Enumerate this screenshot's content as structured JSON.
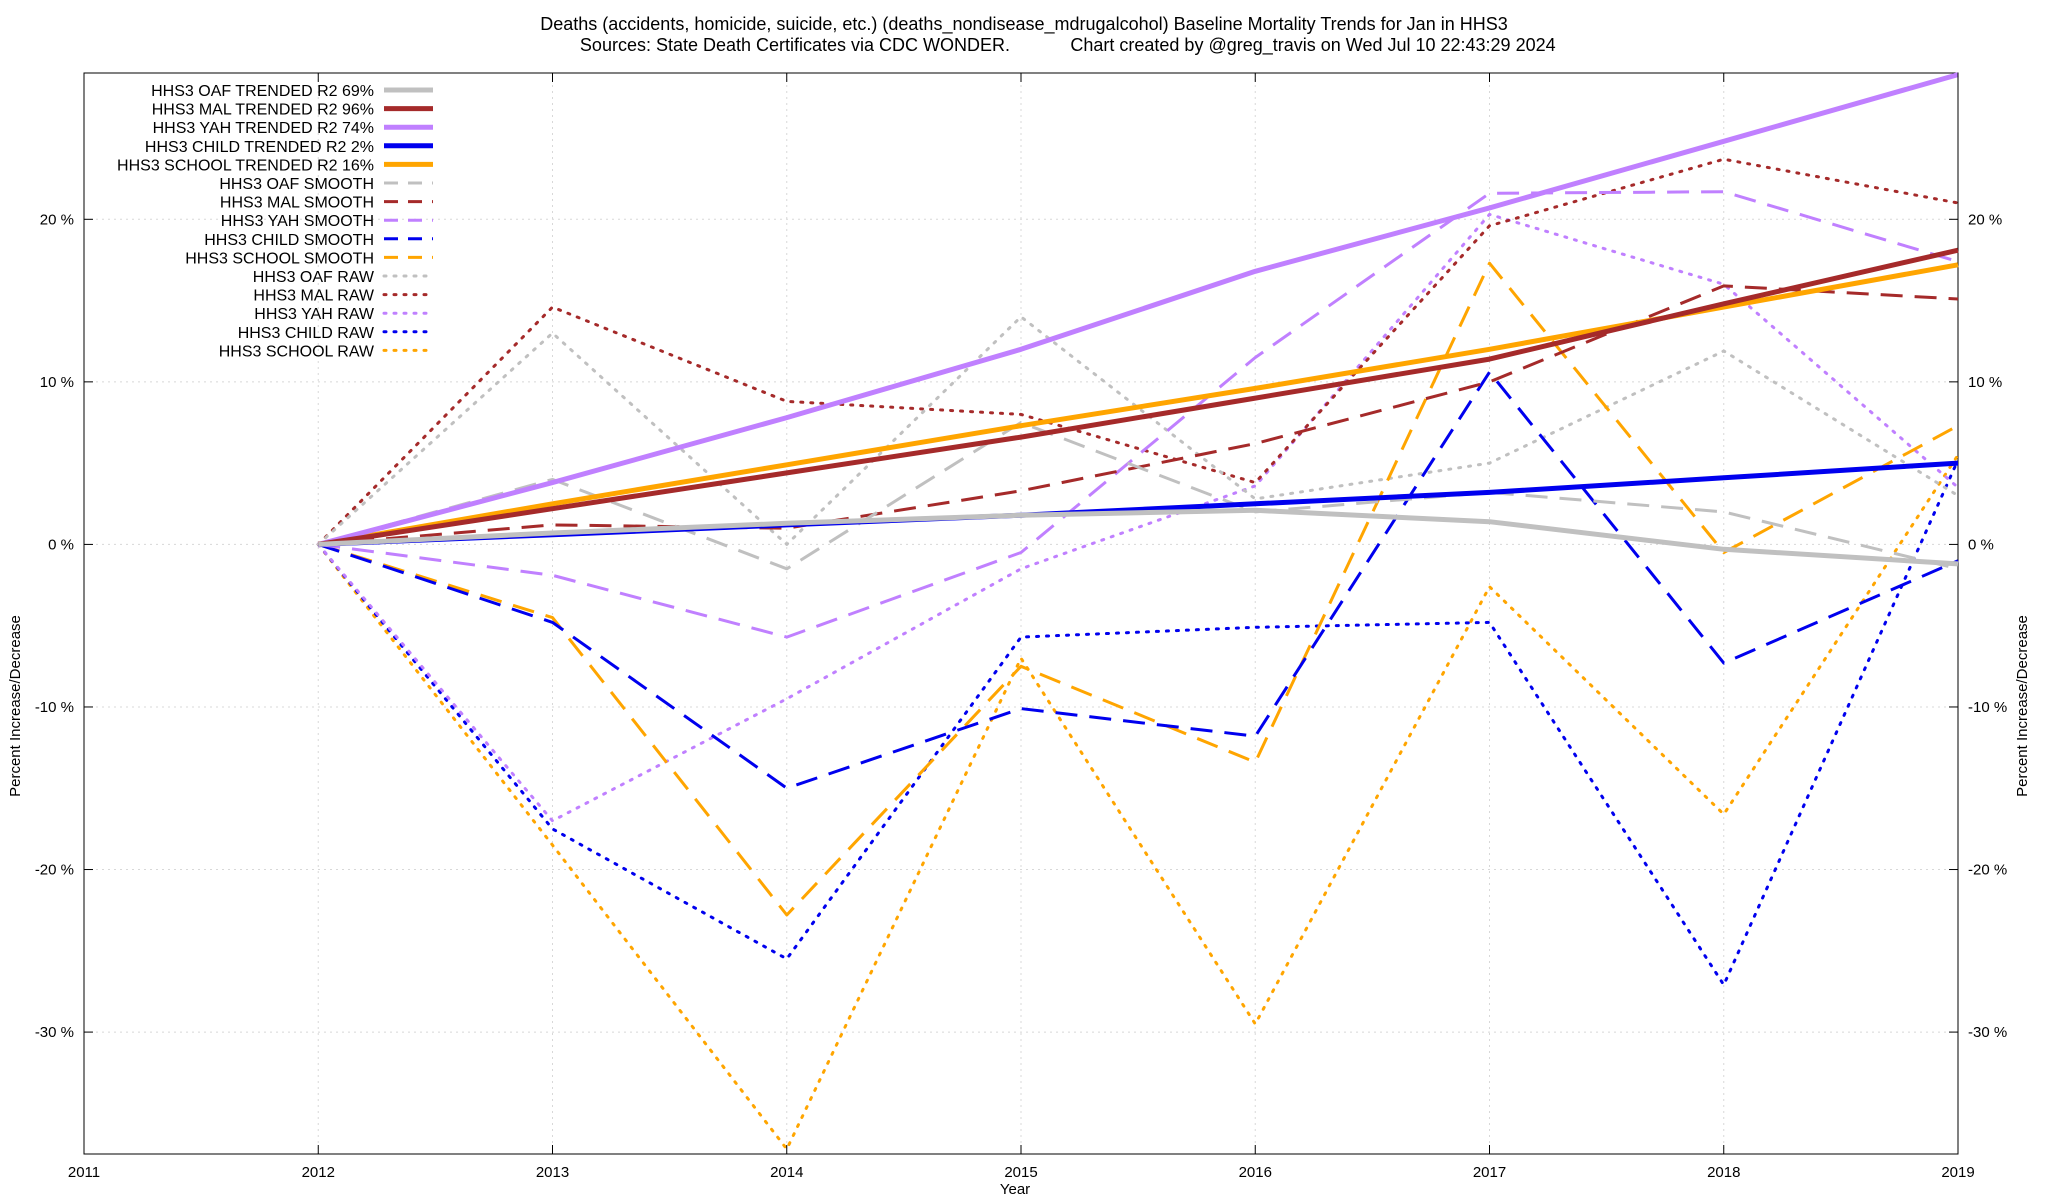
{
  "chart_data": {
    "type": "line",
    "title": "Deaths (accidents, homicide, suicide, etc.) (deaths_nondisease_mdrugalcohol)  Baseline Mortality Trends for Jan in HHS3",
    "subtitle_left": "Sources: State Death Certificates via CDC WONDER.",
    "subtitle_right": "Chart created by @greg_travis on Wed Jul 10 22:43:29 2024",
    "xlabel": "Year",
    "ylabel": "Percent Increase/Decrease",
    "y2label": "Percent Increase/Decrease",
    "xlim": [
      2011,
      2019
    ],
    "ylim": [
      -37.5,
      29
    ],
    "x_ticks": [
      2011,
      2012,
      2013,
      2014,
      2015,
      2016,
      2017,
      2018,
      2019
    ],
    "x_tick_labels": [
      "2011",
      "2012",
      "2013",
      "2014",
      "2015",
      "2016",
      "2017",
      "2018",
      "2019"
    ],
    "y_ticks": [
      -30,
      -20,
      -10,
      0,
      10,
      20
    ],
    "y_tick_labels": [
      "-30 %",
      "-20 %",
      "-10 %",
      "0 %",
      "10 %",
      "20 %"
    ],
    "grid": true,
    "legend_position": "top-left",
    "x": [
      2012,
      2013,
      2014,
      2015,
      2016,
      2017,
      2018,
      2019
    ],
    "series": [
      {
        "name": "HHS3 OAF TRENDED R2  69%",
        "color": "#c0c0c0",
        "style": "solid",
        "width": 5,
        "values": [
          0,
          0.7,
          1.3,
          1.8,
          2.1,
          1.4,
          -0.3,
          -1.2
        ]
      },
      {
        "name": "HHS3 MAL TRENDED R2  96%",
        "color": "#a52a2a",
        "style": "solid",
        "width": 5,
        "values": [
          0,
          2.2,
          4.4,
          6.6,
          9.0,
          11.4,
          14.8,
          18.1
        ]
      },
      {
        "name": "HHS3 YAH TRENDED R2  74%",
        "color": "#c080ff",
        "style": "solid",
        "width": 5,
        "values": [
          0,
          3.8,
          7.8,
          12.0,
          16.8,
          20.7,
          24.8,
          28.9
        ]
      },
      {
        "name": "HHS3 CHILD TRENDED R2   2%",
        "color": "#0000ee",
        "style": "solid",
        "width": 5,
        "values": [
          0,
          0.6,
          1.2,
          1.8,
          2.5,
          3.2,
          4.1,
          5.0
        ]
      },
      {
        "name": "HHS3 SCHOOL TRENDED R2  16%",
        "color": "#ffa500",
        "style": "solid",
        "width": 5,
        "values": [
          0,
          2.5,
          4.9,
          7.3,
          9.6,
          12.0,
          14.6,
          17.2
        ]
      },
      {
        "name": "HHS3 OAF SMOOTH",
        "color": "#c0c0c0",
        "style": "dashed",
        "width": 3,
        "values": [
          0,
          4.0,
          -1.5,
          7.5,
          2.0,
          3.2,
          2.0,
          -1.5
        ]
      },
      {
        "name": "HHS3 MAL SMOOTH",
        "color": "#a52a2a",
        "style": "dashed",
        "width": 3,
        "values": [
          0,
          1.2,
          1.0,
          3.3,
          6.2,
          10.0,
          15.9,
          15.1
        ]
      },
      {
        "name": "HHS3 YAH SMOOTH",
        "color": "#c080ff",
        "style": "dashed",
        "width": 3,
        "values": [
          0,
          -1.9,
          -5.7,
          -0.5,
          11.5,
          21.6,
          21.7,
          17.4
        ]
      },
      {
        "name": "HHS3 CHILD SMOOTH",
        "color": "#0000ee",
        "style": "dashed",
        "width": 3,
        "values": [
          0,
          -4.8,
          -15.0,
          -10.1,
          -11.8,
          10.6,
          -7.3,
          -1.0
        ]
      },
      {
        "name": "HHS3 SCHOOL SMOOTH",
        "color": "#ffa500",
        "style": "dashed",
        "width": 3,
        "values": [
          0,
          -4.5,
          -22.8,
          -7.5,
          -13.4,
          17.3,
          -0.5,
          7.3
        ]
      },
      {
        "name": "HHS3 OAF RAW",
        "color": "#c0c0c0",
        "style": "dotted",
        "width": 3,
        "values": [
          0,
          13.0,
          0,
          14.0,
          2.8,
          5.0,
          11.9,
          3.0
        ]
      },
      {
        "name": "HHS3 MAL RAW",
        "color": "#a52a2a",
        "style": "dotted",
        "width": 3,
        "values": [
          0,
          14.6,
          8.8,
          8.0,
          3.8,
          19.6,
          23.7,
          21.0
        ]
      },
      {
        "name": "HHS3 YAH RAW",
        "color": "#c080ff",
        "style": "dotted",
        "width": 3,
        "values": [
          0,
          -17.0,
          -9.5,
          -1.5,
          3.6,
          20.3,
          16.0,
          3.5
        ]
      },
      {
        "name": "HHS3 CHILD RAW",
        "color": "#0000ee",
        "style": "dotted",
        "width": 3,
        "values": [
          0,
          -17.5,
          -25.5,
          -5.7,
          -5.1,
          -4.8,
          -27.1,
          5.2
        ]
      },
      {
        "name": "HHS3 SCHOOL RAW",
        "color": "#ffa500",
        "style": "dotted",
        "width": 3,
        "values": [
          0,
          -18.5,
          -37.2,
          -7.0,
          -29.5,
          -2.6,
          -16.6,
          5.5
        ]
      }
    ]
  }
}
